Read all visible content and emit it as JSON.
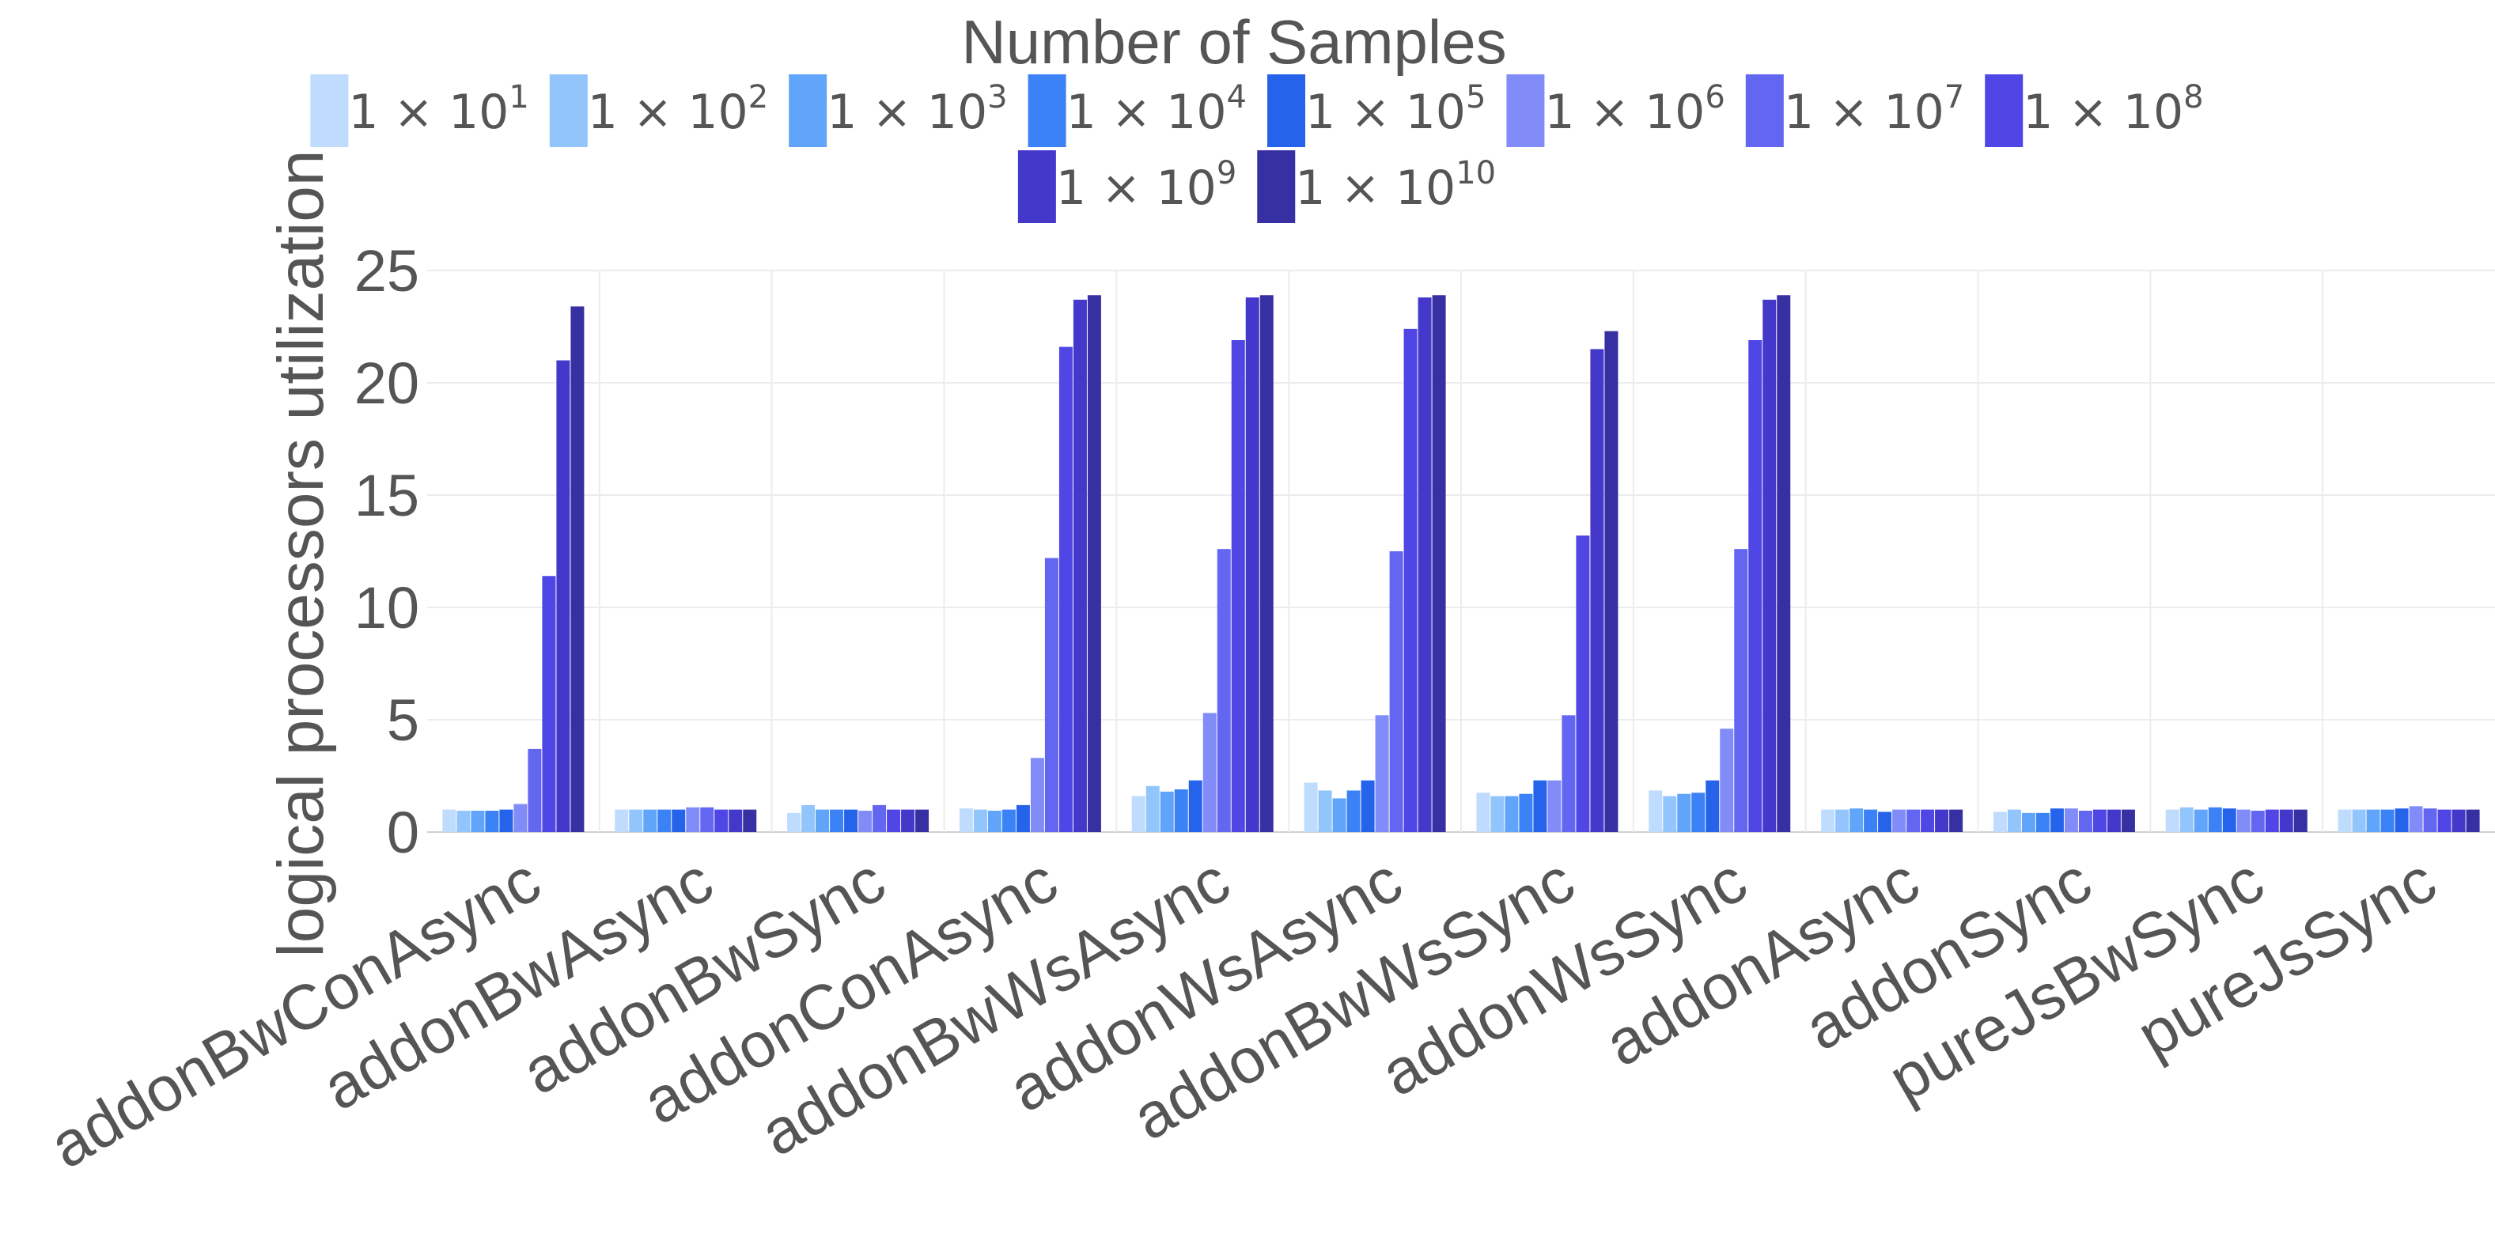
{
  "chart_data": {
    "type": "bar",
    "title": "",
    "legend_title": "Number of Samples",
    "xlabel": "",
    "ylabel": "logical processors utilization",
    "ylim": [
      0,
      25
    ],
    "yticks": [
      0,
      5,
      10,
      15,
      20,
      25
    ],
    "grid": true,
    "legend_position": "top",
    "categories": [
      "addonBwConAsync",
      "addonBwAsync",
      "addonBwSync",
      "addonConAsync",
      "addonBwWsAsync",
      "addonWsAsync",
      "addonBwWsSync",
      "addonWsSync",
      "addonAsync",
      "addonSync",
      "pureJsBwSync",
      "pureJsSync"
    ],
    "series": [
      {
        "name": "1 × 10^1",
        "label_base": "1 × 10",
        "label_exp": "1",
        "color": "#bfdbfe",
        "values": [
          1.0,
          1.0,
          0.85,
          1.05,
          1.6,
          2.2,
          1.75,
          1.85,
          1.0,
          0.9,
          1.0,
          1.0
        ]
      },
      {
        "name": "1 × 10^2",
        "label_base": "1 × 10",
        "label_exp": "2",
        "color": "#93c5fd",
        "values": [
          0.95,
          1.0,
          1.2,
          1.0,
          2.05,
          1.85,
          1.6,
          1.6,
          1.0,
          1.0,
          1.1,
          1.0
        ]
      },
      {
        "name": "1 × 10^3",
        "label_base": "1 × 10",
        "label_exp": "3",
        "color": "#60a5fa",
        "values": [
          0.95,
          1.0,
          1.0,
          0.95,
          1.8,
          1.5,
          1.6,
          1.7,
          1.05,
          0.85,
          1.0,
          1.0
        ]
      },
      {
        "name": "1 × 10^4",
        "label_base": "1 × 10",
        "label_exp": "4",
        "color": "#3b82f6",
        "values": [
          0.95,
          1.0,
          1.0,
          1.0,
          1.9,
          1.85,
          1.7,
          1.75,
          1.0,
          0.85,
          1.1,
          1.0
        ]
      },
      {
        "name": "1 × 10^5",
        "label_base": "1 × 10",
        "label_exp": "5",
        "color": "#2563eb",
        "values": [
          1.0,
          1.0,
          1.0,
          1.2,
          2.3,
          2.3,
          2.3,
          2.3,
          0.9,
          1.05,
          1.05,
          1.05
        ]
      },
      {
        "name": "1 × 10^6",
        "label_base": "1 × 10",
        "label_exp": "6",
        "color": "#818cf8",
        "values": [
          1.25,
          1.1,
          0.95,
          3.3,
          5.3,
          5.2,
          2.3,
          4.6,
          1.0,
          1.05,
          1.0,
          1.15
        ]
      },
      {
        "name": "1 × 10^7",
        "label_base": "1 × 10",
        "label_exp": "7",
        "color": "#6366f1",
        "values": [
          3.7,
          1.1,
          1.2,
          12.2,
          12.6,
          12.5,
          5.2,
          12.6,
          1.0,
          0.95,
          0.95,
          1.05
        ]
      },
      {
        "name": "1 × 10^8",
        "label_base": "1 × 10",
        "label_exp": "8",
        "color": "#4f46e5",
        "values": [
          11.4,
          1.0,
          1.0,
          21.6,
          21.9,
          22.4,
          13.2,
          21.9,
          1.0,
          1.0,
          1.0,
          1.0
        ]
      },
      {
        "name": "1 × 10^9",
        "label_base": "1 × 10",
        "label_exp": "9",
        "color": "#4338ca",
        "values": [
          21.0,
          1.0,
          1.0,
          23.7,
          23.8,
          23.8,
          21.5,
          23.7,
          1.0,
          1.0,
          1.0,
          1.0
        ]
      },
      {
        "name": "1 × 10^10",
        "label_base": "1 × 10",
        "label_exp": "10",
        "color": "#3730a3",
        "values": [
          23.4,
          1.0,
          1.0,
          23.9,
          23.9,
          23.9,
          22.3,
          23.9,
          1.0,
          1.0,
          1.0,
          1.0
        ]
      }
    ]
  }
}
